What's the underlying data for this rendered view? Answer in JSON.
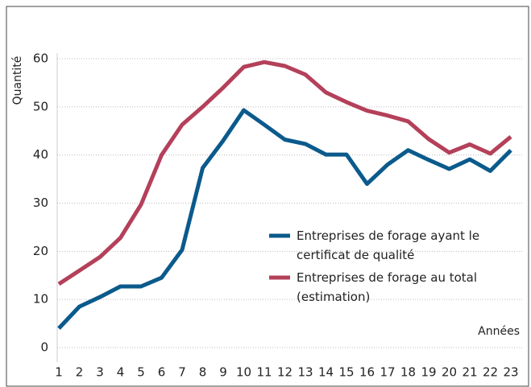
{
  "chart_data": {
    "type": "line",
    "ylabel": "Quantité",
    "xlabel": "Années",
    "categories": [
      "1",
      "2",
      "3",
      "4",
      "5",
      "6",
      "7",
      "8",
      "9",
      "10",
      "11",
      "12",
      "13",
      "14",
      "15",
      "16",
      "17",
      "18",
      "19",
      "20",
      "21",
      "22",
      "23"
    ],
    "series": [
      {
        "name": "Entreprises de forage ayant le certificat de qualité",
        "color": "#0b5a8c",
        "values": [
          4,
          8.5,
          10.5,
          12.7,
          12.7,
          14.5,
          20.3,
          37.3,
          43,
          49.3,
          46.3,
          43.2,
          42.3,
          40.1,
          40.1,
          34,
          38,
          41,
          39,
          37.1,
          39.1,
          36.7,
          41
        ]
      },
      {
        "name": "Entreprises de forage au total (estimation)",
        "color": "#b4405a",
        "values": [
          13.2,
          16,
          18.8,
          22.8,
          29.7,
          40,
          46.3,
          50,
          54,
          58.3,
          59.3,
          58.5,
          56.7,
          53,
          51,
          49.2,
          48.2,
          47,
          43.3,
          40.5,
          42.2,
          40.3,
          43.8
        ]
      }
    ],
    "ylim": [
      0,
      60
    ],
    "yticks": [
      0,
      10,
      20,
      30,
      40,
      50,
      60
    ],
    "grid": true
  }
}
